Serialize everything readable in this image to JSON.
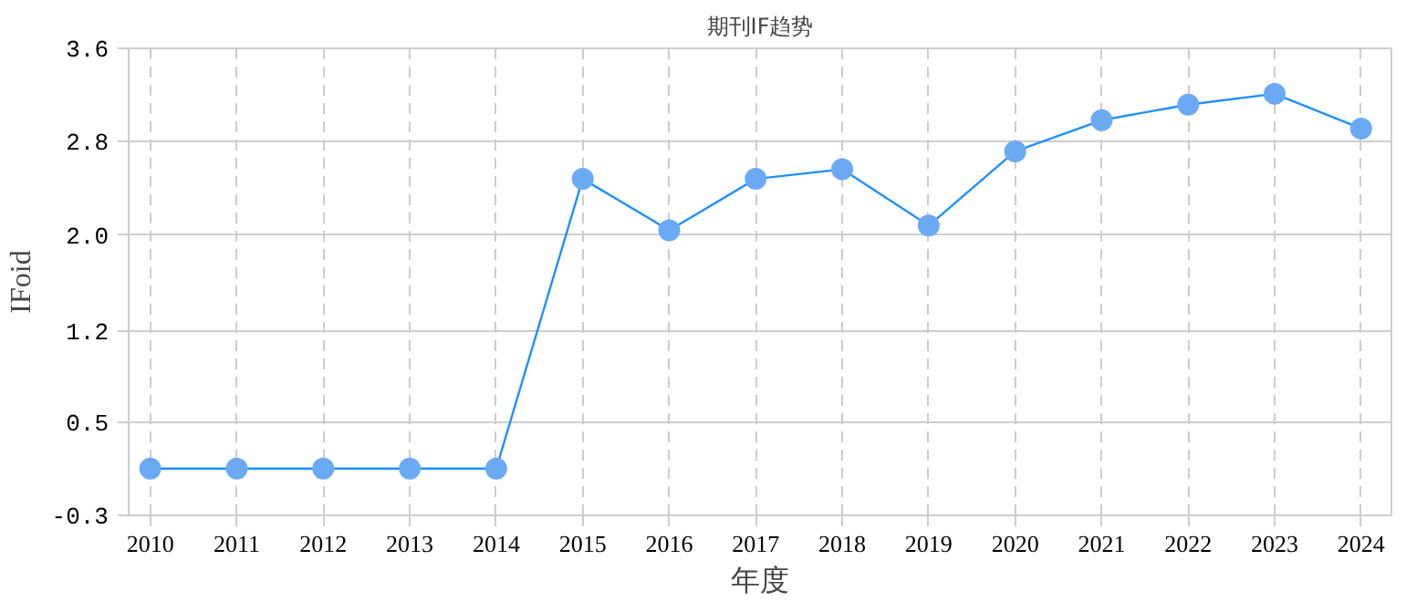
{
  "chart_data": {
    "type": "line",
    "title": "期刊IF趋势",
    "xlabel": "年度",
    "ylabel": "IFoid",
    "categories": [
      "2010",
      "2011",
      "2012",
      "2013",
      "2014",
      "2015",
      "2016",
      "2017",
      "2018",
      "2019",
      "2020",
      "2021",
      "2022",
      "2023",
      "2024"
    ],
    "series": [
      {
        "color": "#1e90ff",
        "values": [
          0.09,
          0.09,
          0.09,
          0.09,
          0.09,
          2.51,
          2.08,
          2.51,
          2.59,
          2.12,
          2.74,
          3.0,
          3.13,
          3.22,
          2.93
        ]
      }
    ],
    "ylim": [
      -0.3,
      3.6
    ],
    "yticks": [
      {
        "value": -0.3,
        "label": "-0.3"
      },
      {
        "value": 0.48,
        "label": "0.5"
      },
      {
        "value": 1.24,
        "label": "1.2"
      },
      {
        "value": 2.04,
        "label": "2.0"
      },
      {
        "value": 2.82,
        "label": "2.8"
      },
      {
        "value": 3.6,
        "label": "3.6"
      }
    ],
    "grid": true,
    "marker": "circle",
    "line_style": "solid"
  }
}
